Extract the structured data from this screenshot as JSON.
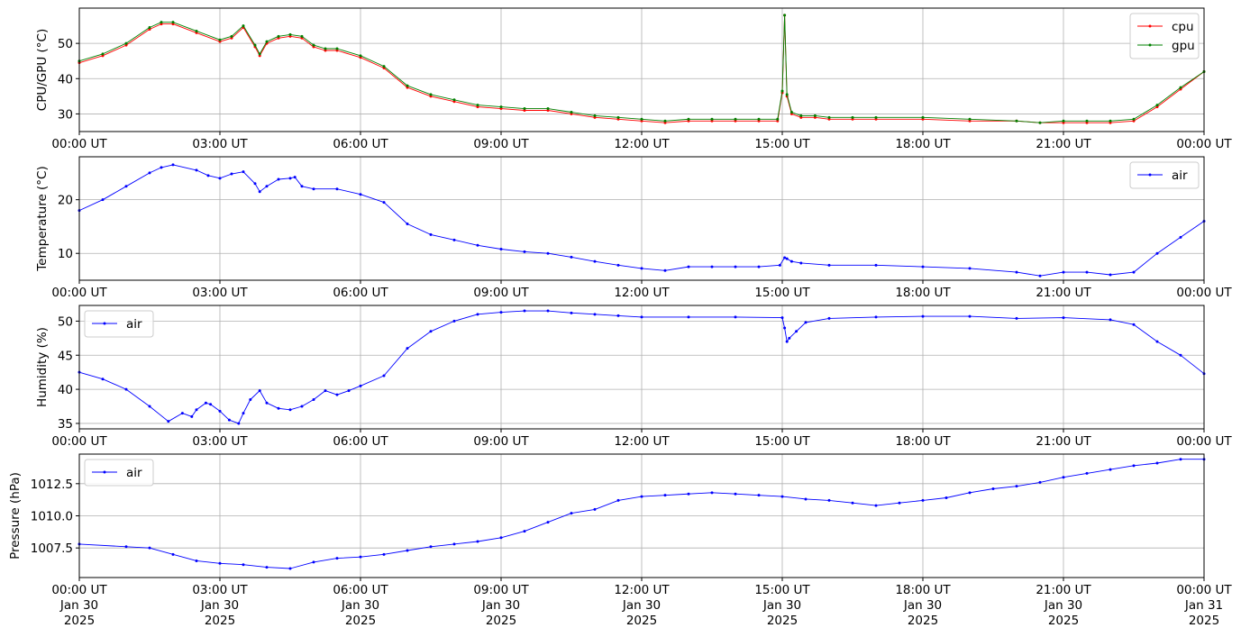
{
  "chart_data": [
    {
      "type": "line",
      "ylabel": "CPU/GPU (°C)",
      "xlabel": "",
      "x_tick_labels": [
        "00:00 UT",
        "03:00 UT",
        "06:00 UT",
        "09:00 UT",
        "12:00 UT",
        "15:00 UT",
        "18:00 UT",
        "21:00 UT",
        "00:00 UT"
      ],
      "xlim_hours": [
        0,
        24
      ],
      "ylim": [
        25,
        60
      ],
      "yticks": [
        30,
        40,
        50
      ],
      "grid": true,
      "legend_placement": "upper right",
      "series": [
        {
          "name": "cpu",
          "color": "#ff0000",
          "x_hours": [
            0,
            0.5,
            1.0,
            1.5,
            1.75,
            2.0,
            2.5,
            3.0,
            3.25,
            3.5,
            3.75,
            3.85,
            4.0,
            4.25,
            4.5,
            4.75,
            5.0,
            5.25,
            5.5,
            6.0,
            6.5,
            7.0,
            7.5,
            8.0,
            8.5,
            9.0,
            9.5,
            10.0,
            10.5,
            11.0,
            11.5,
            12.0,
            12.5,
            13.0,
            13.5,
            14.0,
            14.5,
            14.9,
            15.0,
            15.05,
            15.1,
            15.2,
            15.4,
            15.7,
            16.0,
            16.5,
            17.0,
            18.0,
            19.0,
            20.0,
            20.5,
            21.0,
            21.5,
            22.0,
            22.5,
            23.0,
            23.5,
            24.0
          ],
          "values": [
            44.5,
            46.5,
            49.5,
            54,
            55.5,
            55.5,
            53,
            50.5,
            51.5,
            54.5,
            49,
            46.5,
            50,
            51.5,
            52,
            51.5,
            49,
            48,
            48,
            46,
            43,
            37.5,
            35,
            33.5,
            32,
            31.5,
            31,
            31,
            30,
            29,
            28.5,
            28,
            27.5,
            28,
            28,
            28,
            28,
            28,
            36,
            58,
            35,
            30,
            29,
            29,
            28.5,
            28.5,
            28.5,
            28.5,
            28,
            28,
            27.5,
            27.5,
            27.5,
            27.5,
            28,
            32,
            37,
            42
          ]
        },
        {
          "name": "gpu",
          "color": "#008000",
          "x_hours": [
            0,
            0.5,
            1.0,
            1.5,
            1.75,
            2.0,
            2.5,
            3.0,
            3.25,
            3.5,
            3.75,
            3.85,
            4.0,
            4.25,
            4.5,
            4.75,
            5.0,
            5.25,
            5.5,
            6.0,
            6.5,
            7.0,
            7.5,
            8.0,
            8.5,
            9.0,
            9.5,
            10.0,
            10.5,
            11.0,
            11.5,
            12.0,
            12.5,
            13.0,
            13.5,
            14.0,
            14.5,
            14.9,
            15.0,
            15.05,
            15.1,
            15.2,
            15.4,
            15.7,
            16.0,
            16.5,
            17.0,
            18.0,
            19.0,
            20.0,
            20.5,
            21.0,
            21.5,
            22.0,
            22.5,
            23.0,
            23.5,
            24.0
          ],
          "values": [
            45,
            47,
            50,
            54.5,
            56,
            56,
            53.5,
            51,
            52,
            55,
            49.5,
            47,
            50.5,
            52,
            52.5,
            52,
            49.5,
            48.5,
            48.5,
            46.5,
            43.5,
            38,
            35.5,
            34,
            32.5,
            32,
            31.5,
            31.5,
            30.5,
            29.5,
            29,
            28.5,
            28,
            28.5,
            28.5,
            28.5,
            28.5,
            28.5,
            36.5,
            58,
            35.5,
            30.5,
            29.5,
            29.5,
            29,
            29,
            29,
            29,
            28.5,
            28,
            27.5,
            28,
            28,
            28,
            28.5,
            32.5,
            37.5,
            42
          ]
        }
      ]
    },
    {
      "type": "line",
      "ylabel": "Temperature (°C)",
      "xlabel": "",
      "x_tick_labels": [
        "00:00 UT",
        "03:00 UT",
        "06:00 UT",
        "09:00 UT",
        "12:00 UT",
        "15:00 UT",
        "18:00 UT",
        "21:00 UT",
        "00:00 UT"
      ],
      "xlim_hours": [
        0,
        24
      ],
      "ylim": [
        5,
        28
      ],
      "yticks": [
        10,
        20
      ],
      "grid": true,
      "legend_placement": "upper right",
      "series": [
        {
          "name": "air",
          "color": "#0000ff",
          "x_hours": [
            0,
            0.5,
            1.0,
            1.5,
            1.75,
            2.0,
            2.5,
            2.75,
            3.0,
            3.25,
            3.5,
            3.75,
            3.85,
            4.0,
            4.25,
            4.5,
            4.6,
            4.75,
            5.0,
            5.5,
            6.0,
            6.5,
            7.0,
            7.5,
            8.0,
            8.5,
            9.0,
            9.5,
            10.0,
            10.5,
            11.0,
            11.5,
            12.0,
            12.5,
            13.0,
            13.5,
            14.0,
            14.5,
            14.95,
            15.05,
            15.1,
            15.2,
            15.4,
            16.0,
            17.0,
            18.0,
            19.0,
            20.0,
            20.5,
            21.0,
            21.5,
            22.0,
            22.5,
            23.0,
            23.5,
            24.0
          ],
          "values": [
            18,
            20,
            22.5,
            25,
            26,
            26.5,
            25.5,
            24.5,
            24,
            24.8,
            25.2,
            23,
            21.5,
            22.5,
            23.8,
            24,
            24.2,
            22.5,
            22,
            22,
            21,
            19.5,
            15.5,
            13.5,
            12.5,
            11.5,
            10.8,
            10.3,
            10,
            9.3,
            8.5,
            7.8,
            7.2,
            6.8,
            7.5,
            7.5,
            7.5,
            7.5,
            7.8,
            9.2,
            9.0,
            8.5,
            8.2,
            7.8,
            7.8,
            7.5,
            7.2,
            6.5,
            5.8,
            6.5,
            6.5,
            6.0,
            6.5,
            10,
            13,
            16
          ]
        }
      ]
    },
    {
      "type": "line",
      "ylabel": "Humidity (%)",
      "xlabel": "",
      "x_tick_labels": [
        "00:00 UT",
        "03:00 UT",
        "06:00 UT",
        "09:00 UT",
        "12:00 UT",
        "15:00 UT",
        "18:00 UT",
        "21:00 UT",
        "00:00 UT"
      ],
      "xlim_hours": [
        0,
        24
      ],
      "ylim": [
        34.2,
        52.3
      ],
      "yticks": [
        35,
        40,
        45,
        50
      ],
      "grid": true,
      "legend_placement": "upper left",
      "series": [
        {
          "name": "air",
          "color": "#0000ff",
          "x_hours": [
            0,
            0.5,
            1.0,
            1.5,
            1.9,
            2.2,
            2.4,
            2.5,
            2.7,
            2.8,
            3.0,
            3.2,
            3.4,
            3.5,
            3.65,
            3.85,
            4.0,
            4.25,
            4.5,
            4.75,
            5.0,
            5.25,
            5.5,
            5.75,
            6.0,
            6.5,
            7.0,
            7.5,
            8.0,
            8.5,
            9.0,
            9.5,
            10.0,
            10.5,
            11.0,
            11.5,
            12.0,
            13.0,
            14.0,
            15.0,
            15.05,
            15.1,
            15.15,
            15.3,
            15.5,
            16.0,
            17.0,
            18.0,
            19.0,
            20.0,
            21.0,
            22.0,
            22.5,
            23.0,
            23.5,
            24.0
          ],
          "values": [
            42.5,
            41.5,
            40,
            37.5,
            35.3,
            36.5,
            36,
            37,
            38,
            37.8,
            36.8,
            35.5,
            35,
            36.5,
            38.5,
            39.8,
            38,
            37.2,
            37.0,
            37.5,
            38.5,
            39.8,
            39.2,
            39.8,
            40.5,
            42,
            46,
            48.5,
            50,
            51,
            51.3,
            51.5,
            51.5,
            51.2,
            51,
            50.8,
            50.6,
            50.6,
            50.6,
            50.5,
            49,
            47,
            47.5,
            48.5,
            49.8,
            50.4,
            50.6,
            50.7,
            50.7,
            50.4,
            50.5,
            50.2,
            49.5,
            47,
            45,
            42.3
          ]
        }
      ]
    },
    {
      "type": "line",
      "ylabel": "Pressure (hPa)",
      "xlabel": "",
      "x_tick_labels": [
        "00:00 UT\nJan 30\n2025",
        "03:00 UT\nJan 30\n2025",
        "06:00 UT\nJan 30\n2025",
        "09:00 UT\nJan 30\n2025",
        "12:00 UT\nJan 30\n2025",
        "15:00 UT\nJan 30\n2025",
        "18:00 UT\nJan 30\n2025",
        "21:00 UT\nJan 30\n2025",
        "00:00 UT\nJan 31\n2025"
      ],
      "xlim_hours": [
        0,
        24
      ],
      "ylim": [
        1005.2,
        1014.8
      ],
      "yticks": [
        1007.5,
        1010.0,
        1012.5
      ],
      "ytick_labels": [
        "1007.5",
        "1010.0",
        "1012.5"
      ],
      "grid": true,
      "legend_placement": "upper left",
      "series": [
        {
          "name": "air",
          "color": "#0000ff",
          "x_hours": [
            0,
            1.0,
            1.5,
            2.0,
            2.5,
            3.0,
            3.5,
            4.0,
            4.5,
            5.0,
            5.5,
            6.0,
            6.5,
            7.0,
            7.5,
            8.0,
            8.5,
            9.0,
            9.5,
            10.0,
            10.5,
            11.0,
            11.5,
            12.0,
            12.5,
            13.0,
            13.5,
            14.0,
            14.5,
            15.0,
            15.5,
            16.0,
            16.5,
            17.0,
            17.5,
            18.0,
            18.5,
            19.0,
            19.5,
            20.0,
            20.5,
            21.0,
            21.5,
            22.0,
            22.5,
            23.0,
            23.5,
            24.0
          ],
          "values": [
            1007.8,
            1007.6,
            1007.5,
            1007.0,
            1006.5,
            1006.3,
            1006.2,
            1006.0,
            1005.9,
            1006.4,
            1006.7,
            1006.8,
            1007.0,
            1007.3,
            1007.6,
            1007.8,
            1008.0,
            1008.3,
            1008.8,
            1009.5,
            1010.2,
            1010.5,
            1011.2,
            1011.5,
            1011.6,
            1011.7,
            1011.8,
            1011.7,
            1011.6,
            1011.5,
            1011.3,
            1011.2,
            1011.0,
            1010.8,
            1011.0,
            1011.2,
            1011.4,
            1011.8,
            1012.1,
            1012.3,
            1012.6,
            1013.0,
            1013.3,
            1013.6,
            1013.9,
            1014.1,
            1014.4,
            1014.4
          ]
        }
      ]
    }
  ]
}
